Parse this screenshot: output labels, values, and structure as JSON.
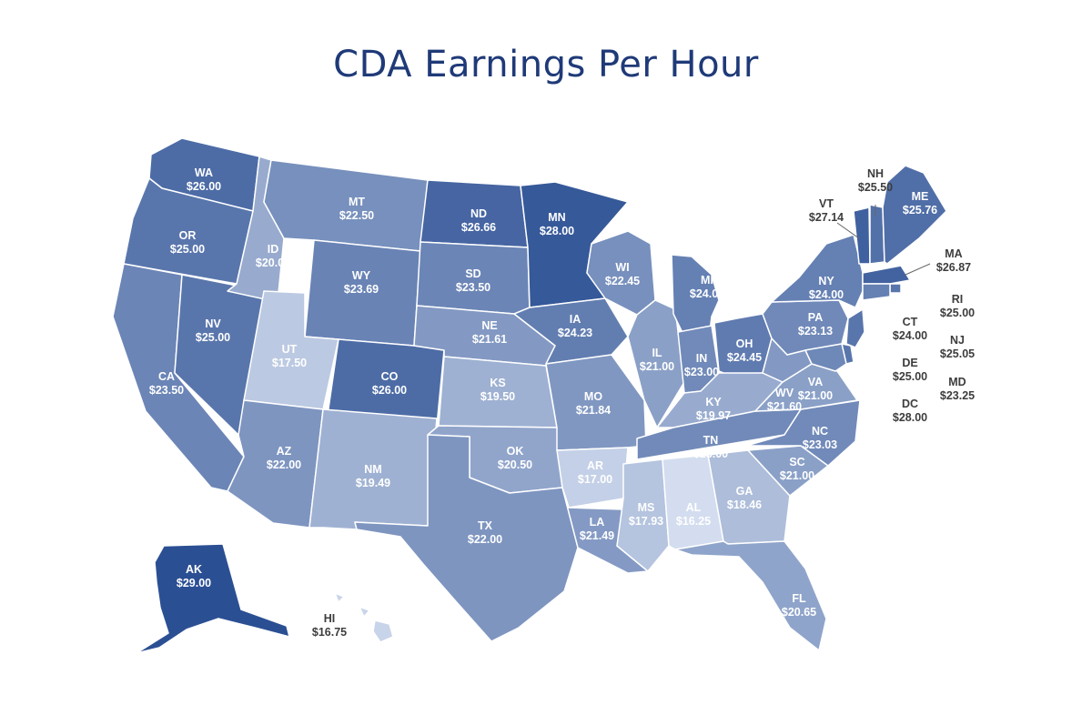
{
  "title": "CDA Earnings Per Hour",
  "states": [
    {
      "id": "WA",
      "value": "$26.00"
    },
    {
      "id": "OR",
      "value": "$25.00"
    },
    {
      "id": "CA",
      "value": "$23.50"
    },
    {
      "id": "NV",
      "value": "$25.00"
    },
    {
      "id": "ID",
      "value": "$20.00"
    },
    {
      "id": "MT",
      "value": "$22.50"
    },
    {
      "id": "WY",
      "value": "$23.69"
    },
    {
      "id": "UT",
      "value": "$17.50"
    },
    {
      "id": "CO",
      "value": "$26.00"
    },
    {
      "id": "AZ",
      "value": "$22.00"
    },
    {
      "id": "NM",
      "value": "$19.49"
    },
    {
      "id": "ND",
      "value": "$26.66"
    },
    {
      "id": "SD",
      "value": "$23.50"
    },
    {
      "id": "NE",
      "value": "$21.61"
    },
    {
      "id": "KS",
      "value": "$19.50"
    },
    {
      "id": "OK",
      "value": "$20.50"
    },
    {
      "id": "TX",
      "value": "$22.00"
    },
    {
      "id": "MN",
      "value": "$28.00"
    },
    {
      "id": "IA",
      "value": "$24.23"
    },
    {
      "id": "MO",
      "value": "$21.84"
    },
    {
      "id": "AR",
      "value": "$17.00"
    },
    {
      "id": "LA",
      "value": "$21.49"
    },
    {
      "id": "WI",
      "value": "$22.45"
    },
    {
      "id": "IL",
      "value": "$21.00"
    },
    {
      "id": "MI",
      "value": "$24.00"
    },
    {
      "id": "IN",
      "value": "$23.00"
    },
    {
      "id": "OH",
      "value": "$24.45"
    },
    {
      "id": "KY",
      "value": "$19.97"
    },
    {
      "id": "TN",
      "value": "$23.00"
    },
    {
      "id": "MS",
      "value": "$17.93"
    },
    {
      "id": "AL",
      "value": "$16.25"
    },
    {
      "id": "GA",
      "value": "$18.46"
    },
    {
      "id": "FL",
      "value": "$20.65"
    },
    {
      "id": "SC",
      "value": "$21.00"
    },
    {
      "id": "NC",
      "value": "$23.03"
    },
    {
      "id": "VA",
      "value": "$21.00"
    },
    {
      "id": "WV",
      "value": "$21.60"
    },
    {
      "id": "PA",
      "value": "$23.13"
    },
    {
      "id": "NY",
      "value": "$24.00"
    },
    {
      "id": "VT",
      "value": "$27.14"
    },
    {
      "id": "NH",
      "value": "$25.50"
    },
    {
      "id": "ME",
      "value": "$25.76"
    },
    {
      "id": "MA",
      "value": "$26.87"
    },
    {
      "id": "RI",
      "value": "$25.00"
    },
    {
      "id": "CT",
      "value": "$24.00"
    },
    {
      "id": "NJ",
      "value": "$25.05"
    },
    {
      "id": "DE",
      "value": "$25.00"
    },
    {
      "id": "MD",
      "value": "$23.25"
    },
    {
      "id": "DC",
      "value": "$28.00"
    },
    {
      "id": "AK",
      "value": "$29.00"
    },
    {
      "id": "HI",
      "value": "$16.75"
    }
  ],
  "colors": {
    "title": "#1f3a78",
    "scale_low": "#d3ddef",
    "scale_high": "#2b4f93",
    "label_outside": "#3d3d3d"
  }
}
